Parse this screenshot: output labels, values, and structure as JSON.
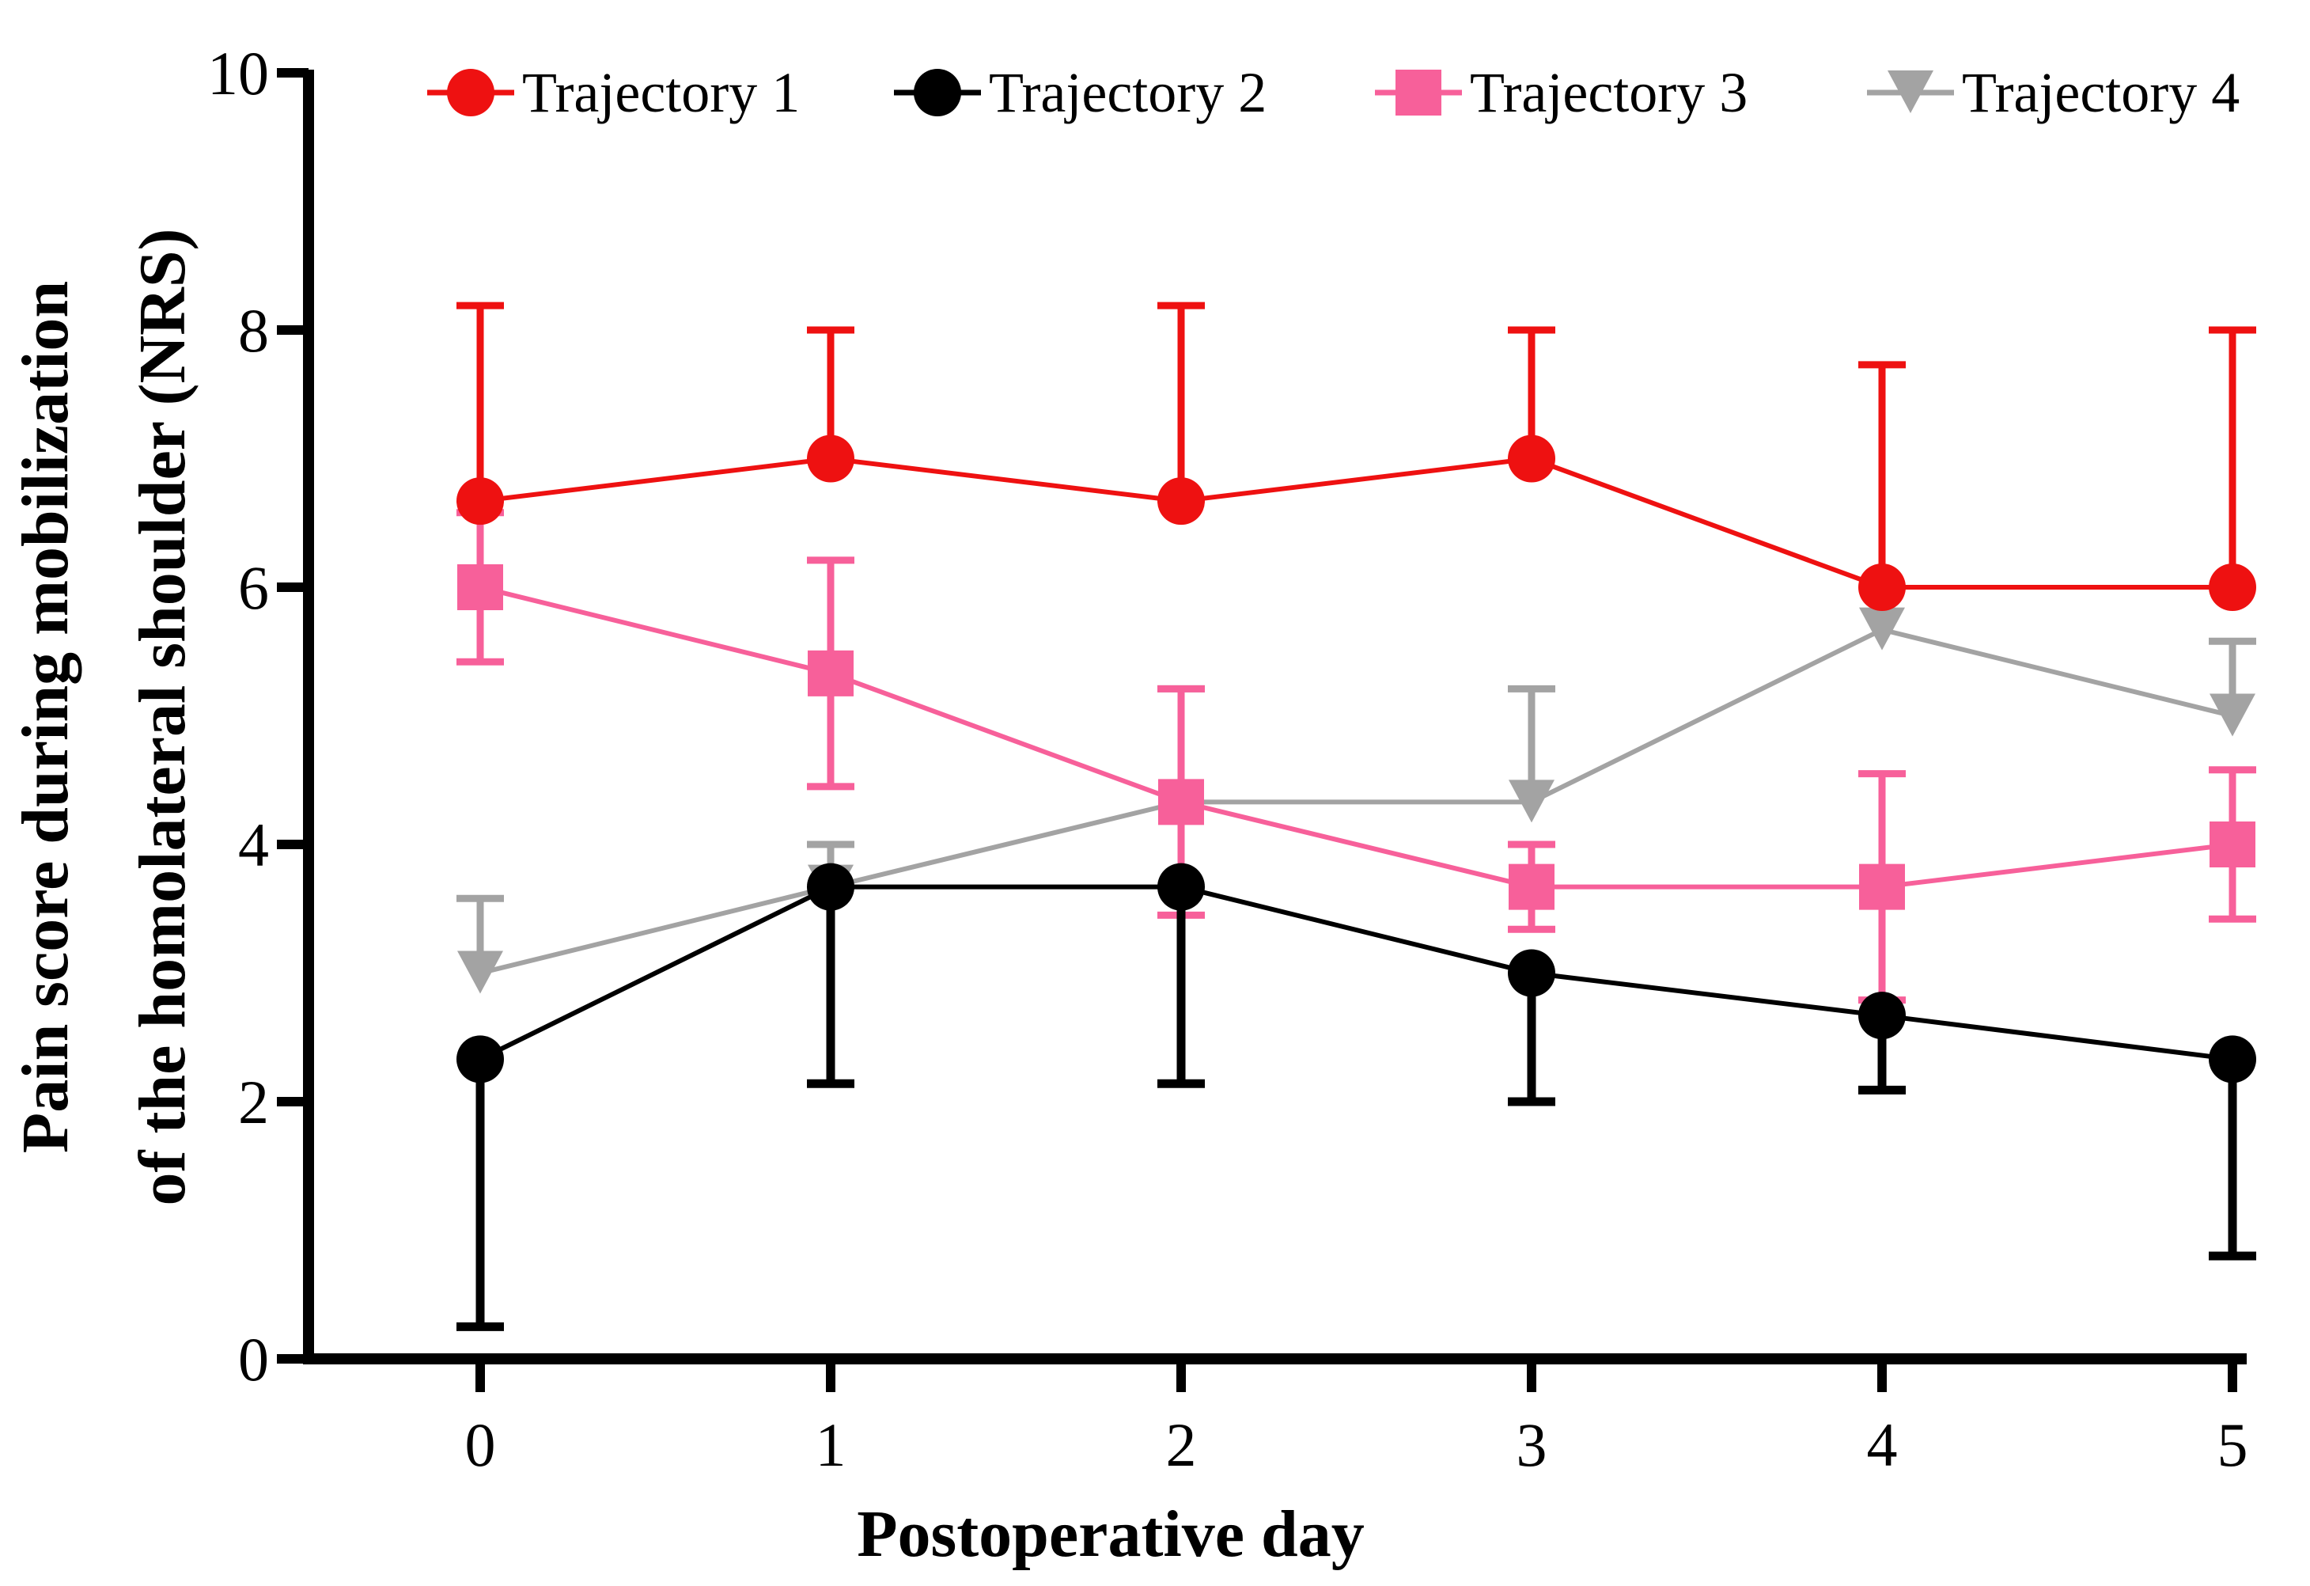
{
  "chart_data": {
    "type": "line",
    "title": "",
    "xlabel": "Postoperative day",
    "ylabel_lines": [
      "Pain score during mobilization",
      "of the homolateral shoulder (NRS)"
    ],
    "x": [
      0,
      1,
      2,
      3,
      4,
      5
    ],
    "x_tick_labels": [
      "0",
      "1",
      "2",
      "3",
      "4",
      "5"
    ],
    "xlim": [
      -0.5,
      5.05
    ],
    "ylim": [
      0,
      10
    ],
    "y_ticks": [
      0,
      2,
      4,
      6,
      8,
      10
    ],
    "y_tick_labels": [
      "0",
      "2",
      "4",
      "6",
      "8",
      "10"
    ],
    "grid": false,
    "legend_position": "top",
    "series": [
      {
        "name": "Trajectory 1",
        "color": "#ee1111",
        "marker": "circle",
        "values": [
          6.67,
          7.0,
          6.67,
          7.0,
          6.0,
          6.0
        ],
        "error_direction": "up",
        "errors": [
          1.52,
          1.0,
          1.52,
          1.0,
          1.73,
          2.0
        ]
      },
      {
        "name": "Trajectory 2",
        "color": "#000000",
        "marker": "circle",
        "values": [
          2.33,
          3.67,
          3.67,
          3.0,
          2.67,
          2.33
        ],
        "error_direction": "down",
        "errors": [
          2.08,
          1.53,
          1.53,
          1.0,
          0.58,
          1.53
        ]
      },
      {
        "name": "Trajectory 3",
        "color": "#f7609a",
        "marker": "square",
        "values": [
          6.0,
          5.33,
          4.33,
          3.67,
          3.67,
          4.0
        ],
        "error_direction": "both",
        "errors": [
          0.58,
          0.88,
          0.88,
          0.33,
          0.88,
          0.58
        ]
      },
      {
        "name": "Trajectory 4",
        "color": "#a3a3a3",
        "marker": "triangle-down",
        "values": [
          3.0,
          3.67,
          4.33,
          4.33,
          5.67,
          5.0
        ],
        "error_direction": "up",
        "errors": [
          0.58,
          0.33,
          0.88,
          0.88,
          0.0,
          0.58
        ]
      }
    ]
  }
}
